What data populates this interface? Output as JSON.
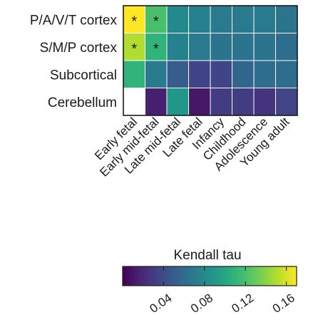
{
  "chart_data": {
    "type": "heatmap",
    "rows": [
      "P/A/V/T cortex",
      "S/M/P cortex",
      "Subcortical",
      "Cerebellum"
    ],
    "columns": [
      "Early fetal",
      "Early mid-fetal",
      "Late mid-fetal",
      "Late fetal",
      "Infancy",
      "Childhood",
      "Adolescence",
      "Young adult"
    ],
    "values": [
      [
        0.17,
        0.12,
        0.08,
        0.075,
        0.07,
        0.07,
        0.07,
        0.065
      ],
      [
        0.15,
        0.11,
        0.075,
        0.07,
        0.065,
        0.065,
        0.065,
        0.06
      ],
      [
        0.11,
        0.07,
        0.05,
        0.035,
        0.035,
        0.055,
        0.06,
        0.06
      ],
      [
        null,
        0.015,
        0.09,
        0.01,
        0.03,
        0.03,
        0.025,
        0.035
      ]
    ],
    "significant": [
      [
        true,
        true,
        false,
        false,
        false,
        false,
        false,
        false
      ],
      [
        true,
        true,
        false,
        false,
        false,
        false,
        false,
        false
      ],
      [
        false,
        false,
        false,
        false,
        false,
        false,
        false,
        false
      ],
      [
        false,
        false,
        false,
        false,
        false,
        false,
        false,
        false
      ]
    ],
    "significance_marker": "*",
    "missing_color": "#ffffff",
    "colorbar": {
      "title": "Kendall tau",
      "colormap": "viridis",
      "range": [
        0.0,
        0.17
      ],
      "ticks": [
        0.04,
        0.08,
        0.12,
        0.16
      ],
      "tick_labels": [
        "0.04",
        "0.08",
        "0.12",
        "0.16"
      ]
    }
  }
}
